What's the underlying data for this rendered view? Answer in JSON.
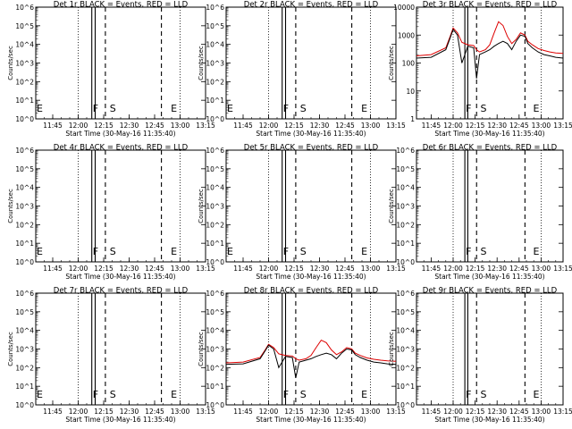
{
  "figure": {
    "background": "#ffffff",
    "axis_color": "#000000",
    "red_color": "#dd0000",
    "black_color": "#000000"
  },
  "chart_data": [
    {
      "type": "line",
      "detector": "1r",
      "title": "Det 1r BLACK = Events, RED = LLD",
      "xlabel": "Start Time (30-May-16 11:35:40)",
      "ylabel": "Counts/sec",
      "y_scale": "log",
      "ylim": [
        1,
        1000000
      ],
      "y_ticks": [
        "10^0",
        "10^1",
        "10^2",
        "10^3",
        "10^4",
        "10^5",
        "10^6"
      ],
      "xlim": [
        "11:35",
        "13:15"
      ],
      "x_ticks": [
        "11:45",
        "12:00",
        "12:15",
        "12:30",
        "12:45",
        "13:00",
        "13:15"
      ],
      "grid": "dotted vertical at hours",
      "markers": [
        {
          "label": "E",
          "time": "11:35"
        },
        {
          "label": "F",
          "time": "12:08"
        },
        {
          "label": "S",
          "time": "12:18"
        },
        {
          "label": "E",
          "time": "12:54"
        }
      ],
      "series": []
    },
    {
      "type": "line",
      "detector": "2r",
      "title": "Det 2r BLACK = Events, RED = LLD",
      "xlabel": "Start Time (30-May-16 11:35:40)",
      "ylabel": "Counts/sec",
      "y_scale": "log",
      "ylim": [
        1,
        1000000
      ],
      "y_ticks": [
        "10^0",
        "10^1",
        "10^2",
        "10^3",
        "10^4",
        "10^5",
        "10^6"
      ],
      "xlim": [
        "11:35",
        "13:15"
      ],
      "x_ticks": [
        "11:45",
        "12:00",
        "12:15",
        "12:30",
        "12:45",
        "13:00",
        "13:15"
      ],
      "grid": "dotted vertical at hours",
      "markers": [
        {
          "label": "E",
          "time": "11:35"
        },
        {
          "label": "F",
          "time": "12:08"
        },
        {
          "label": "S",
          "time": "12:18"
        },
        {
          "label": "E",
          "time": "12:54"
        }
      ],
      "series": []
    },
    {
      "type": "line",
      "detector": "3r",
      "title": "Det 3r BLACK = Events, RED = LLD",
      "xlabel": "Start Time (30-May-16 11:35:40)",
      "ylabel": "Counts/sec",
      "y_scale": "log",
      "ylim": [
        1,
        10000
      ],
      "y_ticks": [
        "1",
        "10",
        "100",
        "1000",
        "10000"
      ],
      "xlim": [
        "11:35",
        "13:15"
      ],
      "x_ticks": [
        "11:45",
        "12:00",
        "12:15",
        "12:30",
        "12:45",
        "13:00",
        "13:15"
      ],
      "grid": "dotted vertical at hours",
      "markers": [
        {
          "label": "F",
          "time": "12:08"
        },
        {
          "label": "S",
          "time": "12:18"
        },
        {
          "label": "E",
          "time": "12:54"
        }
      ],
      "series": [
        {
          "color": "red",
          "x": [
            "11:35",
            "11:45",
            "11:55",
            "11:58",
            "12:00",
            "12:03",
            "12:06",
            "12:10",
            "12:14",
            "12:16",
            "12:18",
            "12:22",
            "12:25",
            "12:28",
            "12:31",
            "12:34",
            "12:37",
            "12:40",
            "12:43",
            "12:46",
            "12:49",
            "12:51",
            "12:54",
            "12:58",
            "13:02",
            "13:06",
            "13:10",
            "13:15"
          ],
          "y": [
            180,
            200,
            350,
            900,
            1800,
            1200,
            550,
            450,
            420,
            300,
            250,
            300,
            450,
            1200,
            3000,
            2200,
            900,
            500,
            700,
            1200,
            1000,
            600,
            450,
            330,
            280,
            250,
            230,
            220
          ]
        },
        {
          "color": "black",
          "x": [
            "11:35",
            "11:45",
            "11:55",
            "11:58",
            "12:00",
            "12:03",
            "12:06",
            "12:10",
            "12:14",
            "12:16",
            "12:18",
            "12:22",
            "12:25",
            "12:28",
            "12:31",
            "12:34",
            "12:37",
            "12:40",
            "12:43",
            "12:46",
            "12:49",
            "12:51",
            "12:54",
            "12:58",
            "13:02",
            "13:06",
            "13:10",
            "13:15"
          ],
          "y": [
            150,
            160,
            300,
            800,
            1600,
            1000,
            100,
            400,
            350,
            28,
            200,
            250,
            300,
            400,
            500,
            600,
            500,
            300,
            600,
            1000,
            900,
            500,
            350,
            250,
            200,
            180,
            160,
            150
          ]
        }
      ]
    },
    {
      "type": "line",
      "detector": "4r",
      "title": "Det 4r BLACK = Events, RED = LLD",
      "xlabel": "Start Time (30-May-16 11:35:40)",
      "ylabel": "Counts/sec",
      "y_scale": "log",
      "ylim": [
        1,
        1000000
      ],
      "y_ticks": [
        "10^0",
        "10^1",
        "10^2",
        "10^3",
        "10^4",
        "10^5",
        "10^6"
      ],
      "xlim": [
        "11:35",
        "13:15"
      ],
      "x_ticks": [
        "11:45",
        "12:00",
        "12:15",
        "12:30",
        "12:45",
        "13:00",
        "13:15"
      ],
      "grid": "dotted vertical at hours",
      "markers": [
        {
          "label": "E",
          "time": "11:35"
        },
        {
          "label": "F",
          "time": "12:08"
        },
        {
          "label": "S",
          "time": "12:18"
        },
        {
          "label": "E",
          "time": "12:54"
        }
      ],
      "series": []
    },
    {
      "type": "line",
      "detector": "5r",
      "title": "Det 5r BLACK = Events, RED = LLD",
      "xlabel": "Start Time (30-May-16 11:35:40)",
      "ylabel": "Counts/sec",
      "y_scale": "log",
      "ylim": [
        1,
        1000000
      ],
      "y_ticks": [
        "10^0",
        "10^1",
        "10^2",
        "10^3",
        "10^4",
        "10^5",
        "10^6"
      ],
      "xlim": [
        "11:35",
        "13:15"
      ],
      "x_ticks": [
        "11:45",
        "12:00",
        "12:15",
        "12:30",
        "12:45",
        "13:00",
        "13:15"
      ],
      "grid": "dotted vertical at hours",
      "markers": [
        {
          "label": "E",
          "time": "11:35"
        },
        {
          "label": "F",
          "time": "12:08"
        },
        {
          "label": "S",
          "time": "12:18"
        },
        {
          "label": "E",
          "time": "12:54"
        }
      ],
      "series": []
    },
    {
      "type": "line",
      "detector": "6r",
      "title": "Det 6r BLACK = Events, RED = LLD",
      "xlabel": "Start Time (30-May-16 11:35:40)",
      "ylabel": "Counts/sec",
      "y_scale": "log",
      "ylim": [
        1,
        1000000
      ],
      "y_ticks": [
        "10^0",
        "10^1",
        "10^2",
        "10^3",
        "10^4",
        "10^5",
        "10^6"
      ],
      "xlim": [
        "11:35",
        "13:15"
      ],
      "x_ticks": [
        "11:45",
        "12:00",
        "12:15",
        "12:30",
        "12:45",
        "13:00",
        "13:15"
      ],
      "grid": "dotted vertical at hours",
      "markers": [
        {
          "label": "F",
          "time": "12:08"
        },
        {
          "label": "S",
          "time": "12:18"
        },
        {
          "label": "E",
          "time": "12:54"
        }
      ],
      "series": []
    },
    {
      "type": "line",
      "detector": "7r",
      "title": "Det 7r BLACK = Events, RED = LLD",
      "xlabel": "Start Time (30-May-16 11:35:40)",
      "ylabel": "Counts/sec",
      "y_scale": "log",
      "ylim": [
        1,
        1000000
      ],
      "y_ticks": [
        "10^0",
        "10^1",
        "10^2",
        "10^3",
        "10^4",
        "10^5",
        "10^6"
      ],
      "xlim": [
        "11:35",
        "13:15"
      ],
      "x_ticks": [
        "11:45",
        "12:00",
        "12:15",
        "12:30",
        "12:45",
        "13:00",
        "13:15"
      ],
      "grid": "dotted vertical at hours",
      "markers": [
        {
          "label": "E",
          "time": "11:35"
        },
        {
          "label": "F",
          "time": "12:08"
        },
        {
          "label": "S",
          "time": "12:18"
        },
        {
          "label": "E",
          "time": "12:54"
        }
      ],
      "series": []
    },
    {
      "type": "line",
      "detector": "8r",
      "title": "Det 8r BLACK = Events, RED = LLD",
      "xlabel": "Start Time (30-May-16 11:35:40)",
      "ylabel": "Counts/sec",
      "y_scale": "log",
      "ylim": [
        1,
        1000000
      ],
      "y_ticks": [
        "10^0",
        "10^1",
        "10^2",
        "10^3",
        "10^4",
        "10^5",
        "10^6"
      ],
      "xlim": [
        "11:35",
        "13:15"
      ],
      "x_ticks": [
        "11:45",
        "12:00",
        "12:15",
        "12:30",
        "12:45",
        "13:00",
        "13:15"
      ],
      "grid": "dotted vertical at hours",
      "markers": [
        {
          "label": "F",
          "time": "12:08"
        },
        {
          "label": "S",
          "time": "12:18"
        },
        {
          "label": "E",
          "time": "12:54"
        }
      ],
      "series": [
        {
          "color": "red",
          "x": [
            "11:35",
            "11:45",
            "11:55",
            "11:58",
            "12:00",
            "12:03",
            "12:06",
            "12:10",
            "12:14",
            "12:16",
            "12:18",
            "12:22",
            "12:25",
            "12:28",
            "12:31",
            "12:34",
            "12:37",
            "12:40",
            "12:43",
            "12:46",
            "12:49",
            "12:51",
            "12:54",
            "12:58",
            "13:02",
            "13:06",
            "13:10",
            "13:15"
          ],
          "y": [
            180,
            200,
            350,
            900,
            1800,
            1200,
            550,
            450,
            420,
            300,
            250,
            300,
            450,
            1200,
            3000,
            2200,
            900,
            500,
            700,
            1200,
            1000,
            600,
            450,
            330,
            280,
            250,
            230,
            220
          ]
        },
        {
          "color": "black",
          "x": [
            "11:35",
            "11:45",
            "11:55",
            "11:58",
            "12:00",
            "12:03",
            "12:06",
            "12:10",
            "12:14",
            "12:16",
            "12:18",
            "12:22",
            "12:25",
            "12:28",
            "12:31",
            "12:34",
            "12:37",
            "12:40",
            "12:43",
            "12:46",
            "12:49",
            "12:51",
            "12:54",
            "12:58",
            "13:02",
            "13:06",
            "13:10",
            "13:15"
          ],
          "y": [
            150,
            160,
            300,
            800,
            1600,
            1000,
            100,
            400,
            350,
            28,
            200,
            250,
            300,
            400,
            500,
            600,
            500,
            300,
            600,
            1000,
            900,
            500,
            350,
            250,
            200,
            180,
            160,
            150
          ]
        }
      ]
    },
    {
      "type": "line",
      "detector": "9r",
      "title": "Det 9r BLACK = Events, RED = LLD",
      "xlabel": "Start Time (30-May-16 11:35:40)",
      "ylabel": "Counts/sec",
      "y_scale": "log",
      "ylim": [
        1,
        1000000
      ],
      "y_ticks": [
        "10^0",
        "10^1",
        "10^2",
        "10^3",
        "10^4",
        "10^5",
        "10^6"
      ],
      "xlim": [
        "11:35",
        "13:15"
      ],
      "x_ticks": [
        "11:45",
        "12:00",
        "12:15",
        "12:30",
        "12:45",
        "13:00",
        "13:15"
      ],
      "grid": "dotted vertical at hours",
      "markers": [
        {
          "label": "F",
          "time": "12:08"
        },
        {
          "label": "S",
          "time": "12:18"
        },
        {
          "label": "E",
          "time": "12:54"
        }
      ],
      "series": []
    }
  ]
}
